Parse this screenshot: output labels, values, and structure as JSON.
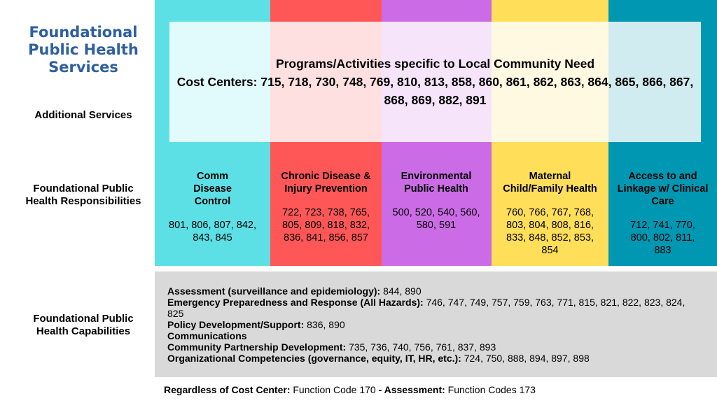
{
  "title": "Foundational Public Health Services",
  "row_labels": {
    "additional": "Additional Services",
    "responsibilities": "Foundational Public Health Responsibilities",
    "capabilities": "Foundational Public Health Capabilities"
  },
  "colors": {
    "comm_disease": "#5ce0e6",
    "chronic_disease": "#ff5757",
    "environmental": "#cb6ce6",
    "maternal": "#ffde59",
    "access": "#0097b2",
    "capabilities_box": "#d9d9d9",
    "title": "#2e5f9e"
  },
  "additional_services": {
    "heading": "Programs/Activities specific to Local Community Need",
    "cost_centers": "Cost Centers: 715, 718, 730, 748, 769, 810, 813, 858, 860, 861, 862, 863, 864, 865, 866, 867, 868, 869, 882, 891"
  },
  "responsibilities": [
    {
      "title": "Comm Disease Control",
      "codes": "801, 806, 807, 842, 843, 845"
    },
    {
      "title": "Chronic Disease & Injury Prevention",
      "codes": "722, 723, 738, 765, 805, 809, 818, 832, 836, 841, 856, 857"
    },
    {
      "title": "Environmental Public Health",
      "codes": "500, 520, 540, 560, 580, 591"
    },
    {
      "title": "Maternal Child/Family Health",
      "codes": "760, 766, 767, 768, 803, 804, 808, 816, 833, 848, 852, 853, 854"
    },
    {
      "title": "Access to and Linkage w/ Clinical Care",
      "codes": "712, 741, 770, 800, 802, 811, 883"
    }
  ],
  "capabilities": [
    {
      "label": "Assessment (surveillance and epidemiology):",
      "codes": " 844, 890"
    },
    {
      "label": "Emergency Preparedness and Response (All Hazards):",
      "codes": " 746, 747, 749, 757, 759, 763, 771, 815, 821, 822, 823, 824, 825"
    },
    {
      "label": "Policy Development/Support:",
      "codes": " 836, 890"
    },
    {
      "label": "Communications",
      "codes": ""
    },
    {
      "label": "Community Partnership Development:",
      "codes": " 735, 736, 740, 756, 761, 837, 893"
    },
    {
      "label": "Organizational Competencies (governance, equity, IT, HR, etc.):",
      "codes": " 724, 750, 888, 894, 897, 898"
    }
  ],
  "footer": {
    "label1": "Regardless of Cost Center:",
    "text1": " Function Code 170 ",
    "label2": "- Assessment:",
    "text2": " Function Codes 173"
  }
}
